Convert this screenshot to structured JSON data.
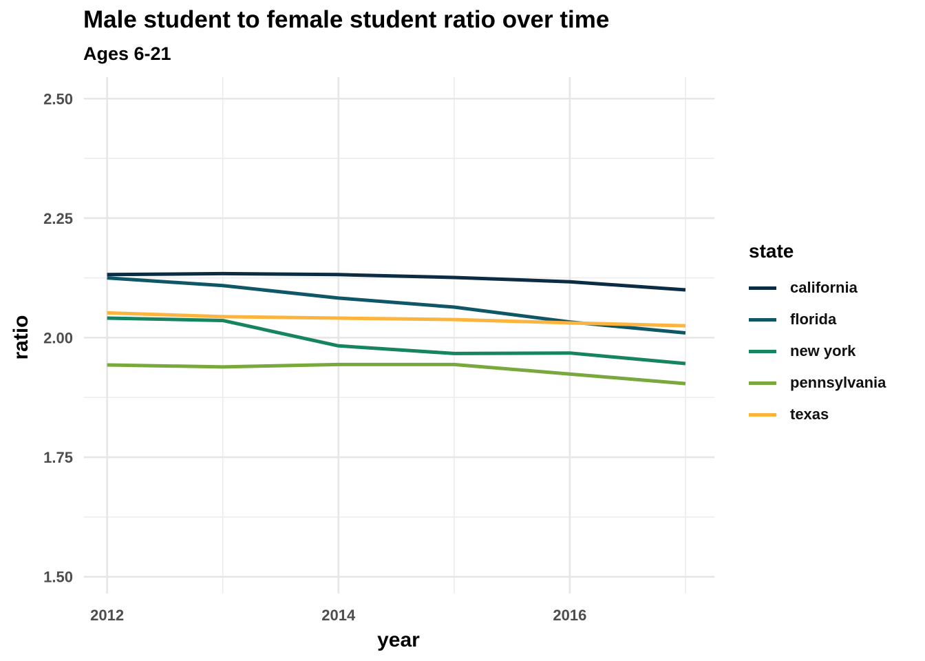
{
  "chart_data": {
    "type": "line",
    "title": "Male student to female student ratio over time",
    "subtitle": "Ages 6-21",
    "xlabel": "year",
    "ylabel": "ratio",
    "legend_title": "state",
    "legend_position": "right",
    "grid": true,
    "xlim": [
      2011.8,
      2017.25
    ],
    "ylim": [
      1.465,
      2.545
    ],
    "x_ticks": [
      2012,
      2014,
      2016
    ],
    "y_ticks": [
      "1.50",
      "1.75",
      "2.00",
      "2.25",
      "2.50"
    ],
    "x": [
      2012,
      2013,
      2014,
      2015,
      2016,
      2017
    ],
    "series": [
      {
        "name": "california",
        "color": "#0c2c44",
        "values": [
          2.132,
          2.134,
          2.132,
          2.126,
          2.117,
          2.1
        ]
      },
      {
        "name": "florida",
        "color": "#0f5766",
        "values": [
          2.125,
          2.109,
          2.083,
          2.064,
          2.033,
          2.01
        ]
      },
      {
        "name": "new york",
        "color": "#168460",
        "values": [
          2.041,
          2.036,
          1.983,
          1.967,
          1.968,
          1.946
        ]
      },
      {
        "name": "pennsylvania",
        "color": "#79a83c",
        "values": [
          1.943,
          1.939,
          1.944,
          1.944,
          1.924,
          1.904
        ]
      },
      {
        "name": "texas",
        "color": "#fdb43e",
        "values": [
          2.052,
          2.044,
          2.041,
          2.038,
          2.031,
          2.025
        ]
      }
    ]
  }
}
